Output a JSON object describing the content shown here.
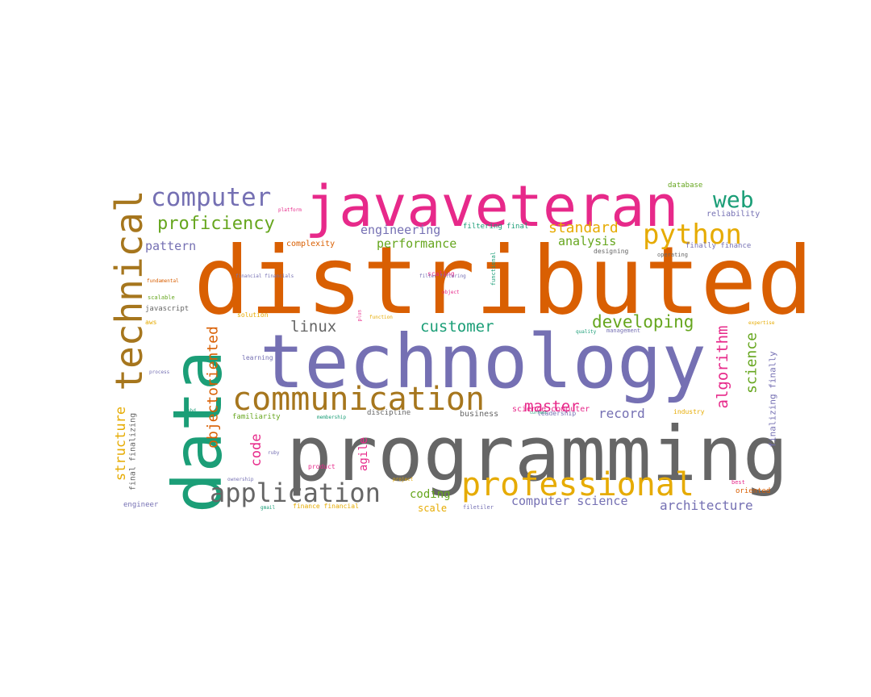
{
  "colors": {
    "orange": "#d95f02",
    "purple": "#7570b3",
    "pink": "#e7298a",
    "teal": "#1b9e77",
    "green": "#66a61e",
    "gold": "#e6ab02",
    "brown": "#a6761d",
    "gray": "#666666"
  },
  "words": [
    {
      "text": "distributed",
      "color": "orange"
    },
    {
      "text": "programming",
      "color": "gray"
    },
    {
      "text": "technology",
      "color": "purple"
    },
    {
      "text": "javaveteran",
      "color": "pink"
    },
    {
      "text": "data",
      "color": "teal"
    },
    {
      "text": "technical",
      "color": "brown"
    },
    {
      "text": "communication",
      "color": "brown"
    },
    {
      "text": "professional",
      "color": "gold"
    },
    {
      "text": "application",
      "color": "gray"
    },
    {
      "text": "computer",
      "color": "purple"
    },
    {
      "text": "python",
      "color": "gold"
    },
    {
      "text": "web",
      "color": "teal"
    },
    {
      "text": "proficiency",
      "color": "green"
    },
    {
      "text": "developing",
      "color": "green"
    },
    {
      "text": "customer",
      "color": "teal"
    },
    {
      "text": "linux",
      "color": "gray"
    },
    {
      "text": "master",
      "color": "pink"
    },
    {
      "text": "record",
      "color": "purple"
    },
    {
      "text": "standard",
      "color": "gold"
    },
    {
      "text": "engineering",
      "color": "purple"
    },
    {
      "text": "performance",
      "color": "green"
    },
    {
      "text": "analysis",
      "color": "green"
    },
    {
      "text": "pattern",
      "color": "purple"
    },
    {
      "text": "algorithm",
      "color": "pink"
    },
    {
      "text": "science",
      "color": "green"
    },
    {
      "text": "objectoriented",
      "color": "orange"
    },
    {
      "text": "structure",
      "color": "gold"
    },
    {
      "text": "code",
      "color": "pink"
    },
    {
      "text": "agile",
      "color": "pink"
    },
    {
      "text": "coding",
      "color": "green"
    },
    {
      "text": "scale",
      "color": "gold"
    },
    {
      "text": "computer science",
      "color": "purple"
    },
    {
      "text": "architecture",
      "color": "purple"
    },
    {
      "text": "finalizing finally",
      "color": "purple"
    },
    {
      "text": "final finalizing",
      "color": "gray"
    },
    {
      "text": "complexity",
      "color": "orange"
    },
    {
      "text": "filtering final",
      "color": "teal"
    },
    {
      "text": "reliability",
      "color": "purple"
    },
    {
      "text": "database",
      "color": "green"
    },
    {
      "text": "finally finance",
      "color": "purple"
    },
    {
      "text": "designing",
      "color": "gray"
    },
    {
      "text": "operating",
      "color": "gray"
    },
    {
      "text": "scaling",
      "color": "pink"
    },
    {
      "text": "functional",
      "color": "teal"
    },
    {
      "text": "science computer",
      "color": "pink"
    },
    {
      "text": "business",
      "color": "gray"
    },
    {
      "text": "familiarity",
      "color": "green"
    },
    {
      "text": "discipline",
      "color": "gray"
    },
    {
      "text": "leadership",
      "color": "purple"
    },
    {
      "text": "industry",
      "color": "gold"
    },
    {
      "text": "javascript",
      "color": "gray"
    },
    {
      "text": "scalable",
      "color": "green"
    },
    {
      "text": "solution",
      "color": "gold"
    },
    {
      "text": "learning",
      "color": "purple"
    },
    {
      "text": "engineer",
      "color": "purple"
    },
    {
      "text": "product",
      "color": "pink"
    },
    {
      "text": "finance financial",
      "color": "gold"
    },
    {
      "text": "filetiler",
      "color": "purple"
    },
    {
      "text": "oriented",
      "color": "orange"
    },
    {
      "text": "best",
      "color": "pink"
    },
    {
      "text": "expertise",
      "color": "gold"
    },
    {
      "text": "management",
      "color": "purple"
    },
    {
      "text": "quality",
      "color": "teal"
    },
    {
      "text": "membership",
      "color": "teal"
    },
    {
      "text": "ownership",
      "color": "purple"
    },
    {
      "text": "project",
      "color": "gold"
    },
    {
      "text": "process",
      "color": "purple"
    },
    {
      "text": "fundamental",
      "color": "orange"
    },
    {
      "text": "financial financials",
      "color": "purple"
    },
    {
      "text": "filter filtering",
      "color": "purple"
    },
    {
      "text": "platform",
      "color": "pink"
    },
    {
      "text": "object",
      "color": "pink"
    },
    {
      "text": "function",
      "color": "gold"
    },
    {
      "text": "ruby",
      "color": "purple"
    },
    {
      "text": "aws",
      "color": "gold"
    },
    {
      "text": "phd",
      "color": "teal"
    },
    {
      "text": "plus",
      "color": "pink"
    },
    {
      "text": "gmail",
      "color": "teal"
    },
    {
      "text": "current",
      "color": "teal"
    }
  ]
}
